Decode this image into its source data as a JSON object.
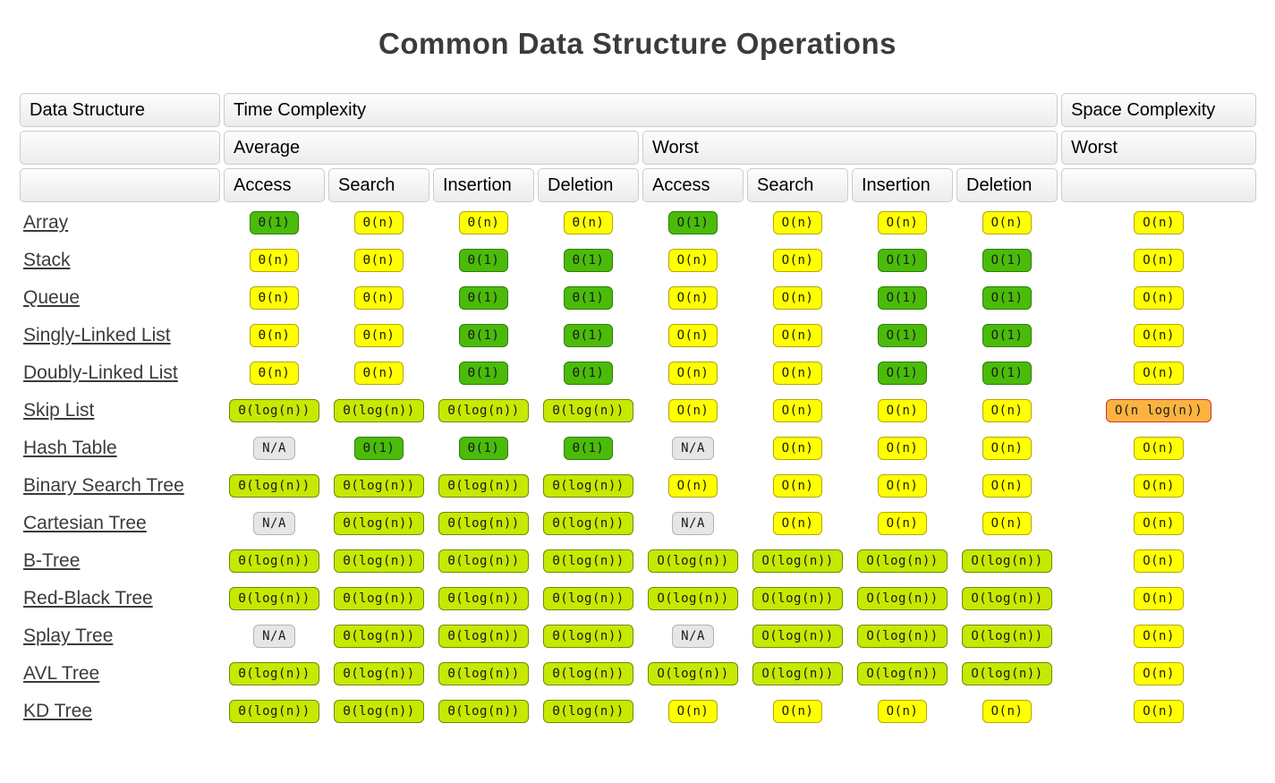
{
  "title": "Common Data Structure Operations",
  "colors": {
    "green": "#4bbb0a",
    "yellow": "#ffff00",
    "yellowgreen": "#c7e801",
    "orange": "#fbb340",
    "gray": "#e6e6e6",
    "orange_border": "#d32f2f",
    "link_text": "#3b3b3b"
  },
  "table": {
    "header": {
      "data_structure": "Data Structure",
      "time_complexity": "Time Complexity",
      "space_complexity": "Space Complexity",
      "average": "Average",
      "worst": "Worst",
      "space_worst": "Worst",
      "ops": [
        "Access",
        "Search",
        "Insertion",
        "Deletion",
        "Access",
        "Search",
        "Insertion",
        "Deletion"
      ]
    },
    "rows": [
      {
        "name": "Array",
        "cells": [
          {
            "text": "Θ(1)",
            "color": "green"
          },
          {
            "text": "Θ(n)",
            "color": "yellow"
          },
          {
            "text": "Θ(n)",
            "color": "yellow"
          },
          {
            "text": "Θ(n)",
            "color": "yellow"
          },
          {
            "text": "O(1)",
            "color": "green"
          },
          {
            "text": "O(n)",
            "color": "yellow"
          },
          {
            "text": "O(n)",
            "color": "yellow"
          },
          {
            "text": "O(n)",
            "color": "yellow"
          },
          {
            "text": "O(n)",
            "color": "yellow"
          }
        ]
      },
      {
        "name": "Stack",
        "cells": [
          {
            "text": "Θ(n)",
            "color": "yellow"
          },
          {
            "text": "Θ(n)",
            "color": "yellow"
          },
          {
            "text": "Θ(1)",
            "color": "green"
          },
          {
            "text": "Θ(1)",
            "color": "green"
          },
          {
            "text": "O(n)",
            "color": "yellow"
          },
          {
            "text": "O(n)",
            "color": "yellow"
          },
          {
            "text": "O(1)",
            "color": "green"
          },
          {
            "text": "O(1)",
            "color": "green"
          },
          {
            "text": "O(n)",
            "color": "yellow"
          }
        ]
      },
      {
        "name": "Queue",
        "cells": [
          {
            "text": "Θ(n)",
            "color": "yellow"
          },
          {
            "text": "Θ(n)",
            "color": "yellow"
          },
          {
            "text": "Θ(1)",
            "color": "green"
          },
          {
            "text": "Θ(1)",
            "color": "green"
          },
          {
            "text": "O(n)",
            "color": "yellow"
          },
          {
            "text": "O(n)",
            "color": "yellow"
          },
          {
            "text": "O(1)",
            "color": "green"
          },
          {
            "text": "O(1)",
            "color": "green"
          },
          {
            "text": "O(n)",
            "color": "yellow"
          }
        ]
      },
      {
        "name": "Singly-Linked List",
        "cells": [
          {
            "text": "Θ(n)",
            "color": "yellow"
          },
          {
            "text": "Θ(n)",
            "color": "yellow"
          },
          {
            "text": "Θ(1)",
            "color": "green"
          },
          {
            "text": "Θ(1)",
            "color": "green"
          },
          {
            "text": "O(n)",
            "color": "yellow"
          },
          {
            "text": "O(n)",
            "color": "yellow"
          },
          {
            "text": "O(1)",
            "color": "green"
          },
          {
            "text": "O(1)",
            "color": "green"
          },
          {
            "text": "O(n)",
            "color": "yellow"
          }
        ]
      },
      {
        "name": "Doubly-Linked List",
        "cells": [
          {
            "text": "Θ(n)",
            "color": "yellow"
          },
          {
            "text": "Θ(n)",
            "color": "yellow"
          },
          {
            "text": "Θ(1)",
            "color": "green"
          },
          {
            "text": "Θ(1)",
            "color": "green"
          },
          {
            "text": "O(n)",
            "color": "yellow"
          },
          {
            "text": "O(n)",
            "color": "yellow"
          },
          {
            "text": "O(1)",
            "color": "green"
          },
          {
            "text": "O(1)",
            "color": "green"
          },
          {
            "text": "O(n)",
            "color": "yellow"
          }
        ]
      },
      {
        "name": "Skip List",
        "cells": [
          {
            "text": "Θ(log(n))",
            "color": "yellowgreen"
          },
          {
            "text": "Θ(log(n))",
            "color": "yellowgreen"
          },
          {
            "text": "Θ(log(n))",
            "color": "yellowgreen"
          },
          {
            "text": "Θ(log(n))",
            "color": "yellowgreen"
          },
          {
            "text": "O(n)",
            "color": "yellow"
          },
          {
            "text": "O(n)",
            "color": "yellow"
          },
          {
            "text": "O(n)",
            "color": "yellow"
          },
          {
            "text": "O(n)",
            "color": "yellow"
          },
          {
            "text": "O(n log(n))",
            "color": "orange"
          }
        ]
      },
      {
        "name": "Hash Table",
        "cells": [
          {
            "text": "N/A",
            "color": "gray"
          },
          {
            "text": "Θ(1)",
            "color": "green"
          },
          {
            "text": "Θ(1)",
            "color": "green"
          },
          {
            "text": "Θ(1)",
            "color": "green"
          },
          {
            "text": "N/A",
            "color": "gray"
          },
          {
            "text": "O(n)",
            "color": "yellow"
          },
          {
            "text": "O(n)",
            "color": "yellow"
          },
          {
            "text": "O(n)",
            "color": "yellow"
          },
          {
            "text": "O(n)",
            "color": "yellow"
          }
        ]
      },
      {
        "name": "Binary Search Tree",
        "cells": [
          {
            "text": "Θ(log(n))",
            "color": "yellowgreen"
          },
          {
            "text": "Θ(log(n))",
            "color": "yellowgreen"
          },
          {
            "text": "Θ(log(n))",
            "color": "yellowgreen"
          },
          {
            "text": "Θ(log(n))",
            "color": "yellowgreen"
          },
          {
            "text": "O(n)",
            "color": "yellow"
          },
          {
            "text": "O(n)",
            "color": "yellow"
          },
          {
            "text": "O(n)",
            "color": "yellow"
          },
          {
            "text": "O(n)",
            "color": "yellow"
          },
          {
            "text": "O(n)",
            "color": "yellow"
          }
        ]
      },
      {
        "name": "Cartesian Tree",
        "cells": [
          {
            "text": "N/A",
            "color": "gray"
          },
          {
            "text": "Θ(log(n))",
            "color": "yellowgreen"
          },
          {
            "text": "Θ(log(n))",
            "color": "yellowgreen"
          },
          {
            "text": "Θ(log(n))",
            "color": "yellowgreen"
          },
          {
            "text": "N/A",
            "color": "gray"
          },
          {
            "text": "O(n)",
            "color": "yellow"
          },
          {
            "text": "O(n)",
            "color": "yellow"
          },
          {
            "text": "O(n)",
            "color": "yellow"
          },
          {
            "text": "O(n)",
            "color": "yellow"
          }
        ]
      },
      {
        "name": "B-Tree",
        "cells": [
          {
            "text": "Θ(log(n))",
            "color": "yellowgreen"
          },
          {
            "text": "Θ(log(n))",
            "color": "yellowgreen"
          },
          {
            "text": "Θ(log(n))",
            "color": "yellowgreen"
          },
          {
            "text": "Θ(log(n))",
            "color": "yellowgreen"
          },
          {
            "text": "O(log(n))",
            "color": "yellowgreen"
          },
          {
            "text": "O(log(n))",
            "color": "yellowgreen"
          },
          {
            "text": "O(log(n))",
            "color": "yellowgreen"
          },
          {
            "text": "O(log(n))",
            "color": "yellowgreen"
          },
          {
            "text": "O(n)",
            "color": "yellow"
          }
        ]
      },
      {
        "name": "Red-Black Tree",
        "cells": [
          {
            "text": "Θ(log(n))",
            "color": "yellowgreen"
          },
          {
            "text": "Θ(log(n))",
            "color": "yellowgreen"
          },
          {
            "text": "Θ(log(n))",
            "color": "yellowgreen"
          },
          {
            "text": "Θ(log(n))",
            "color": "yellowgreen"
          },
          {
            "text": "O(log(n))",
            "color": "yellowgreen"
          },
          {
            "text": "O(log(n))",
            "color": "yellowgreen"
          },
          {
            "text": "O(log(n))",
            "color": "yellowgreen"
          },
          {
            "text": "O(log(n))",
            "color": "yellowgreen"
          },
          {
            "text": "O(n)",
            "color": "yellow"
          }
        ]
      },
      {
        "name": "Splay Tree",
        "cells": [
          {
            "text": "N/A",
            "color": "gray"
          },
          {
            "text": "Θ(log(n))",
            "color": "yellowgreen"
          },
          {
            "text": "Θ(log(n))",
            "color": "yellowgreen"
          },
          {
            "text": "Θ(log(n))",
            "color": "yellowgreen"
          },
          {
            "text": "N/A",
            "color": "gray"
          },
          {
            "text": "O(log(n))",
            "color": "yellowgreen"
          },
          {
            "text": "O(log(n))",
            "color": "yellowgreen"
          },
          {
            "text": "O(log(n))",
            "color": "yellowgreen"
          },
          {
            "text": "O(n)",
            "color": "yellow"
          }
        ]
      },
      {
        "name": "AVL Tree",
        "cells": [
          {
            "text": "Θ(log(n))",
            "color": "yellowgreen"
          },
          {
            "text": "Θ(log(n))",
            "color": "yellowgreen"
          },
          {
            "text": "Θ(log(n))",
            "color": "yellowgreen"
          },
          {
            "text": "Θ(log(n))",
            "color": "yellowgreen"
          },
          {
            "text": "O(log(n))",
            "color": "yellowgreen"
          },
          {
            "text": "O(log(n))",
            "color": "yellowgreen"
          },
          {
            "text": "O(log(n))",
            "color": "yellowgreen"
          },
          {
            "text": "O(log(n))",
            "color": "yellowgreen"
          },
          {
            "text": "O(n)",
            "color": "yellow"
          }
        ]
      },
      {
        "name": "KD Tree",
        "cells": [
          {
            "text": "Θ(log(n))",
            "color": "yellowgreen"
          },
          {
            "text": "Θ(log(n))",
            "color": "yellowgreen"
          },
          {
            "text": "Θ(log(n))",
            "color": "yellowgreen"
          },
          {
            "text": "Θ(log(n))",
            "color": "yellowgreen"
          },
          {
            "text": "O(n)",
            "color": "yellow"
          },
          {
            "text": "O(n)",
            "color": "yellow"
          },
          {
            "text": "O(n)",
            "color": "yellow"
          },
          {
            "text": "O(n)",
            "color": "yellow"
          },
          {
            "text": "O(n)",
            "color": "yellow"
          }
        ]
      }
    ]
  }
}
